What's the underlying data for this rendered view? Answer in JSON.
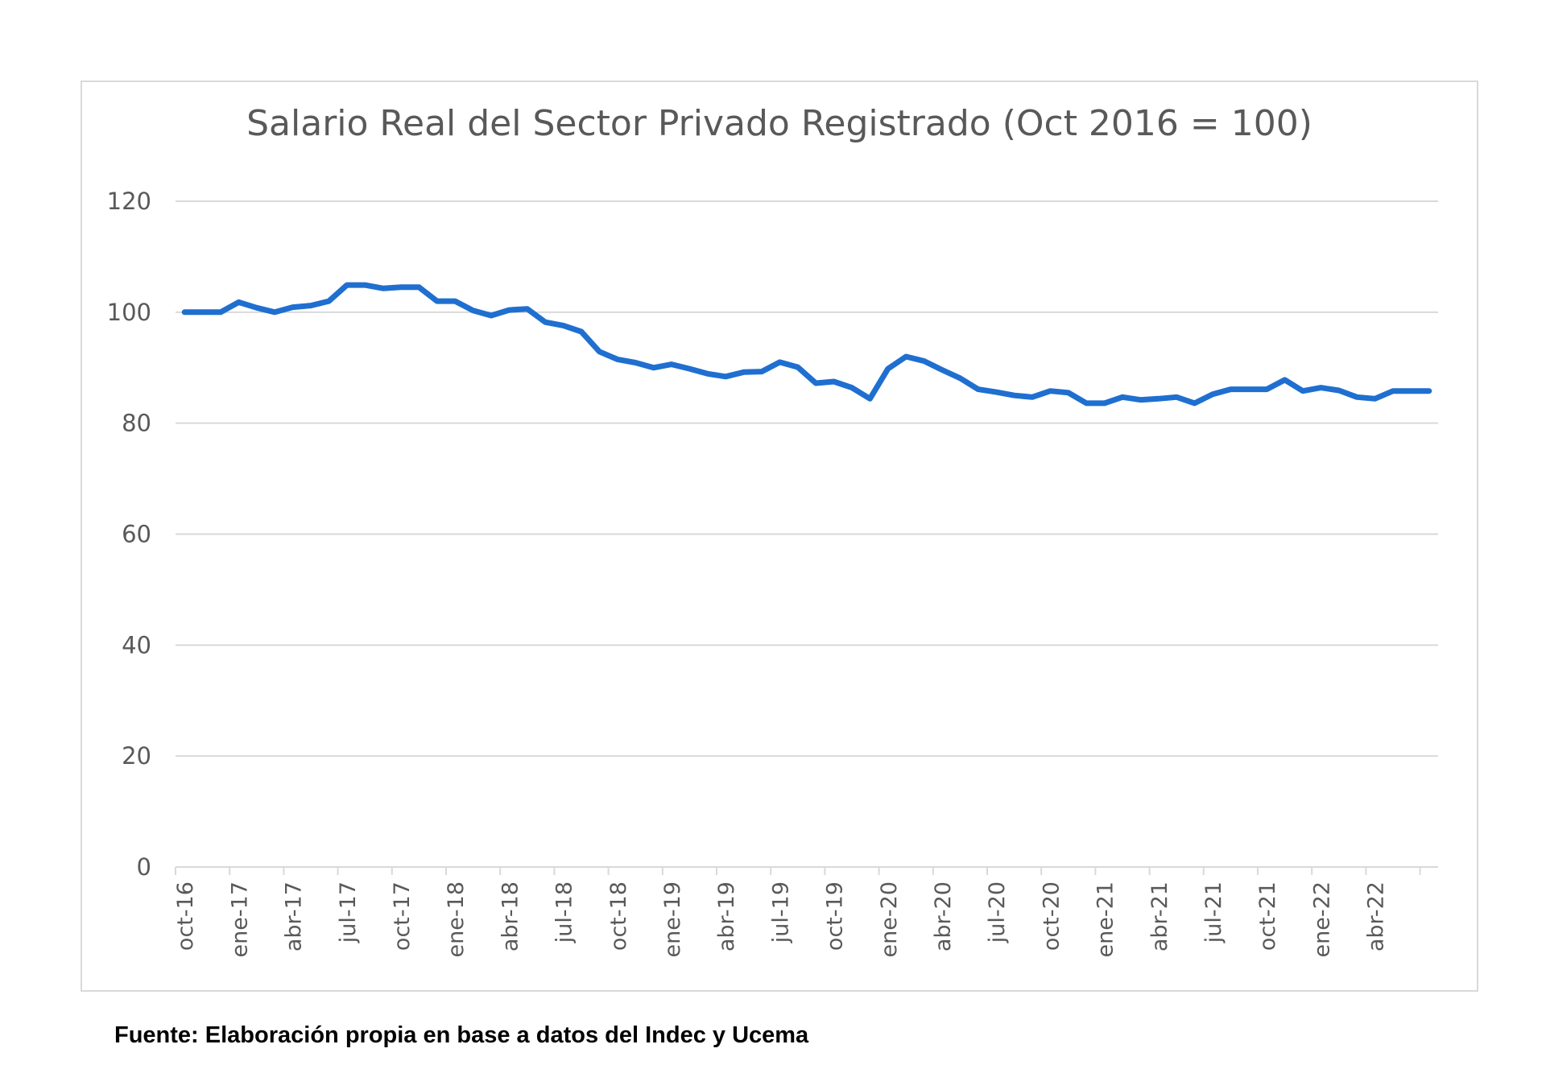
{
  "chart_data": {
    "type": "line",
    "title": "Salario Real del Sector Privado Registrado (Oct 2016 = 100)",
    "xlabel": "",
    "ylabel": "",
    "ylim": [
      0,
      120
    ],
    "yticks": [
      "0",
      "20",
      "40",
      "60",
      "80",
      "100",
      "120"
    ],
    "grid": true,
    "legend": "none",
    "x": [
      "oct-16",
      "nov-16",
      "dic-16",
      "ene-17",
      "feb-17",
      "mar-17",
      "abr-17",
      "may-17",
      "jun-17",
      "jul-17",
      "ago-17",
      "sep-17",
      "oct-17",
      "nov-17",
      "dic-17",
      "ene-18",
      "feb-18",
      "mar-18",
      "abr-18",
      "may-18",
      "jun-18",
      "jul-18",
      "ago-18",
      "sep-18",
      "oct-18",
      "nov-18",
      "dic-18",
      "ene-19",
      "feb-19",
      "mar-19",
      "abr-19",
      "may-19",
      "jun-19",
      "jul-19",
      "ago-19",
      "sep-19",
      "oct-19",
      "nov-19",
      "dic-19",
      "ene-20",
      "feb-20",
      "mar-20",
      "abr-20",
      "may-20",
      "jun-20",
      "jul-20",
      "ago-20",
      "sep-20",
      "oct-20",
      "nov-20",
      "dic-20",
      "ene-21",
      "feb-21",
      "mar-21",
      "abr-21",
      "may-21",
      "jun-21",
      "jul-21",
      "ago-21",
      "sep-21",
      "oct-21",
      "nov-21",
      "dic-21",
      "ene-22",
      "feb-22",
      "mar-22",
      "abr-22",
      "may-22",
      "jun-22",
      "jul-22"
    ],
    "xtick_labels": [
      "oct-16",
      "ene-17",
      "abr-17",
      "jul-17",
      "oct-17",
      "ene-18",
      "abr-18",
      "jul-18",
      "oct-18",
      "ene-19",
      "abr-19",
      "jul-19",
      "oct-19",
      "ene-20",
      "abr-20",
      "jul-20",
      "oct-20",
      "ene-21",
      "abr-21",
      "jul-21",
      "oct-21",
      "ene-22",
      "abr-22"
    ],
    "series": [
      {
        "name": "",
        "color": "#1f6fd0",
        "values": [
          100.0,
          100.0,
          100.0,
          101.8,
          100.8,
          100.0,
          100.9,
          101.2,
          102.0,
          104.9,
          104.9,
          104.3,
          104.5,
          104.5,
          102.0,
          102.0,
          100.3,
          99.4,
          100.4,
          100.6,
          98.2,
          97.6,
          96.5,
          92.9,
          91.5,
          90.9,
          90.0,
          90.6,
          89.8,
          88.9,
          88.4,
          89.2,
          89.3,
          91.0,
          90.1,
          87.2,
          87.5,
          86.4,
          84.4,
          89.8,
          92.0,
          91.2,
          89.6,
          88.1,
          86.1,
          85.6,
          85.0,
          84.7,
          85.8,
          85.5,
          83.6,
          83.6,
          84.7,
          84.2,
          84.4,
          84.7,
          83.6,
          85.2,
          86.1,
          86.1,
          86.1,
          87.8,
          85.8,
          86.4,
          85.9,
          84.7,
          84.4,
          85.8,
          85.8,
          85.8
        ]
      }
    ]
  },
  "source_note": "Fuente: Elaboración propia en base a datos del Indec y Ucema"
}
